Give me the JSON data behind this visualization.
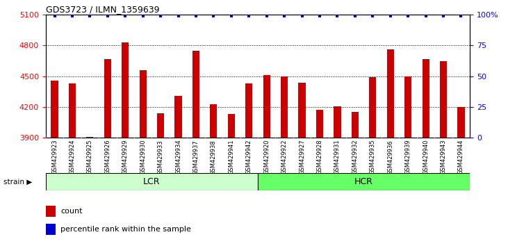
{
  "title": "GDS3723 / ILMN_1359639",
  "samples": [
    "GSM429923",
    "GSM429924",
    "GSM429925",
    "GSM429926",
    "GSM429929",
    "GSM429930",
    "GSM429933",
    "GSM429934",
    "GSM429937",
    "GSM429938",
    "GSM429941",
    "GSM429942",
    "GSM429920",
    "GSM429922",
    "GSM429927",
    "GSM429928",
    "GSM429931",
    "GSM429932",
    "GSM429935",
    "GSM429936",
    "GSM429939",
    "GSM429940",
    "GSM429943",
    "GSM429944"
  ],
  "counts": [
    4460,
    4430,
    3910,
    4670,
    4830,
    4560,
    4140,
    4310,
    4750,
    4230,
    4130,
    4430,
    4510,
    4500,
    4440,
    4170,
    4210,
    4150,
    4490,
    4760,
    4500,
    4670,
    4650,
    4200
  ],
  "ylim_left": [
    3900,
    5100
  ],
  "ylim_right": [
    0,
    100
  ],
  "yticks_left": [
    3900,
    4200,
    4500,
    4800,
    5100
  ],
  "yticks_right": [
    0,
    25,
    50,
    75,
    100
  ],
  "ytick_right_labels": [
    "0",
    "25",
    "50",
    "75",
    "100%"
  ],
  "bar_color": "#cc0000",
  "scatter_color": "#0000cc",
  "lcr_color": "#ccffcc",
  "hcr_color": "#66ff66",
  "tick_bg_color": "#d0d0d0",
  "plot_bg_color": "#ffffff",
  "n_lcr": 12,
  "n_hcr": 12,
  "percentile_value": 99,
  "bar_width": 0.4
}
